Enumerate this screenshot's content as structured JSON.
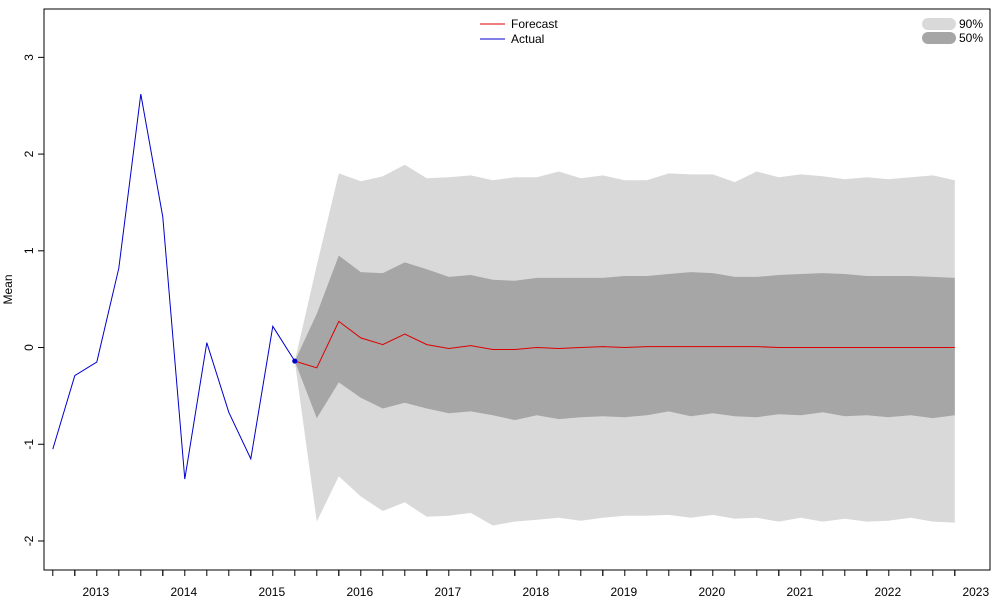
{
  "chart_data": {
    "type": "area",
    "title": "",
    "xlabel": "",
    "ylabel": "Mean",
    "xlim": [
      2012.65,
      2023.4
    ],
    "ylim": [
      -2.3,
      3.5
    ],
    "xticks": [
      2013,
      2014,
      2015,
      2016,
      2017,
      2018,
      2019,
      2020,
      2021,
      2022,
      2023
    ],
    "xtick_labels": [
      "2013",
      "2014",
      "2015",
      "2016",
      "2017",
      "2018",
      "2019",
      "2020",
      "2021",
      "2022",
      "2023"
    ],
    "yticks": [
      -2,
      -1,
      0,
      1,
      2,
      3
    ],
    "ytick_labels": [
      "-2",
      "-1",
      "0",
      "1",
      "2",
      "3"
    ],
    "grid": false,
    "legend_position": "top-center",
    "series": [
      {
        "name": "Actual",
        "color": "#0000CC",
        "x": [
          2012.75,
          2013.0,
          2013.25,
          2013.5,
          2013.75,
          2014.0,
          2014.25,
          2014.5,
          2014.75,
          2015.0,
          2015.25,
          2015.5
        ],
        "values": [
          -1.05,
          -0.29,
          -0.15,
          0.82,
          2.62,
          1.35,
          -1.36,
          0.05,
          -0.67,
          -1.15,
          0.22,
          -0.14
        ]
      },
      {
        "name": "Forecast",
        "color": "#DD0000",
        "x": [
          2015.5,
          2015.75,
          2016.0,
          2016.25,
          2016.5,
          2016.75,
          2017.0,
          2017.25,
          2017.5,
          2017.75,
          2018.0,
          2018.25,
          2018.5,
          2018.75,
          2019.0,
          2019.25,
          2019.5,
          2019.75,
          2020.0,
          2020.25,
          2020.5,
          2020.75,
          2021.0,
          2021.25,
          2021.5,
          2021.75,
          2022.0,
          2022.25,
          2022.5,
          2022.75,
          2023.0
        ],
        "values": [
          -0.14,
          -0.21,
          0.27,
          0.1,
          0.03,
          0.14,
          0.03,
          -0.01,
          0.02,
          -0.02,
          -0.02,
          0.0,
          -0.01,
          0.0,
          0.01,
          0.0,
          0.01,
          0.01,
          0.01,
          0.01,
          0.01,
          0.01,
          0.0,
          0.0,
          0.0,
          0.0,
          0.0,
          0.0,
          0.0,
          0.0,
          0.0
        ]
      }
    ],
    "intervals": [
      {
        "name": "90%",
        "color": "#D9D9D9",
        "x": [
          2015.5,
          2015.75,
          2016.0,
          2016.25,
          2016.5,
          2016.75,
          2017.0,
          2017.25,
          2017.5,
          2017.75,
          2018.0,
          2018.25,
          2018.5,
          2018.75,
          2019.0,
          2019.25,
          2019.5,
          2019.75,
          2020.0,
          2020.25,
          2020.5,
          2020.75,
          2021.0,
          2021.25,
          2021.5,
          2021.75,
          2022.0,
          2022.25,
          2022.5,
          2022.75,
          2023.0
        ],
        "upper": [
          -0.14,
          0.85,
          1.8,
          1.72,
          1.77,
          1.89,
          1.75,
          1.76,
          1.78,
          1.73,
          1.76,
          1.76,
          1.82,
          1.75,
          1.78,
          1.73,
          1.73,
          1.8,
          1.79,
          1.79,
          1.71,
          1.82,
          1.76,
          1.79,
          1.77,
          1.74,
          1.76,
          1.74,
          1.76,
          1.78,
          1.73
        ],
        "lower": [
          -0.14,
          -1.8,
          -1.33,
          -1.54,
          -1.69,
          -1.6,
          -1.75,
          -1.74,
          -1.71,
          -1.84,
          -1.8,
          -1.78,
          -1.76,
          -1.79,
          -1.76,
          -1.74,
          -1.74,
          -1.73,
          -1.76,
          -1.73,
          -1.77,
          -1.76,
          -1.8,
          -1.76,
          -1.8,
          -1.77,
          -1.8,
          -1.79,
          -1.76,
          -1.8,
          -1.81
        ]
      },
      {
        "name": "50%",
        "color": "#A6A6A6",
        "x": [
          2015.5,
          2015.75,
          2016.0,
          2016.25,
          2016.5,
          2016.75,
          2017.0,
          2017.25,
          2017.5,
          2017.75,
          2018.0,
          2018.25,
          2018.5,
          2018.75,
          2019.0,
          2019.25,
          2019.5,
          2019.75,
          2020.0,
          2020.25,
          2020.5,
          2020.75,
          2021.0,
          2021.25,
          2021.5,
          2021.75,
          2022.0,
          2022.25,
          2022.5,
          2022.75,
          2023.0
        ],
        "upper": [
          -0.14,
          0.35,
          0.95,
          0.78,
          0.77,
          0.88,
          0.81,
          0.73,
          0.75,
          0.7,
          0.69,
          0.72,
          0.72,
          0.72,
          0.72,
          0.74,
          0.74,
          0.76,
          0.78,
          0.77,
          0.73,
          0.73,
          0.75,
          0.76,
          0.77,
          0.76,
          0.74,
          0.74,
          0.74,
          0.73,
          0.72
        ],
        "lower": [
          -0.14,
          -0.73,
          -0.36,
          -0.52,
          -0.63,
          -0.57,
          -0.63,
          -0.68,
          -0.66,
          -0.7,
          -0.75,
          -0.7,
          -0.74,
          -0.72,
          -0.71,
          -0.72,
          -0.7,
          -0.66,
          -0.71,
          -0.68,
          -0.71,
          -0.72,
          -0.69,
          -0.7,
          -0.67,
          -0.71,
          -0.7,
          -0.72,
          -0.7,
          -0.73,
          -0.7
        ]
      }
    ],
    "forecast_origin_point": {
      "x": 2015.5,
      "y": -0.14,
      "color": "#0000CC"
    },
    "legend_lines": [
      {
        "label": "Forecast",
        "color": "#DD0000"
      },
      {
        "label": "Actual",
        "color": "#0000CC"
      }
    ],
    "legend_bands": [
      {
        "label": "90%",
        "color": "#D9D9D9"
      },
      {
        "label": "50%",
        "color": "#A6A6A6"
      }
    ]
  }
}
